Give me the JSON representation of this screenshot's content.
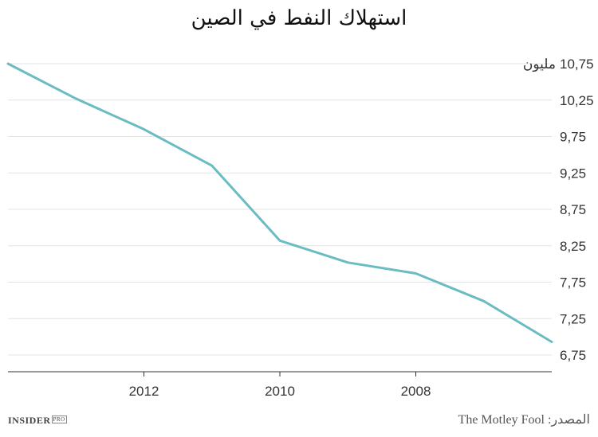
{
  "chart_data": {
    "type": "line",
    "title": "استهلاك النفط في الصين",
    "ylabel_unit": "مليون",
    "y_ticks": [
      "10,75",
      "10,25",
      "9,75",
      "9,25",
      "8,75",
      "8,25",
      "7,75",
      "7,25",
      "6,75"
    ],
    "y_tick_values": [
      10.75,
      10.25,
      9.75,
      9.25,
      8.75,
      8.25,
      7.75,
      7.25,
      6.75
    ],
    "x_ticks": [
      "2012",
      "2010",
      "2008"
    ],
    "x_tick_values": [
      2012,
      2010,
      2008
    ],
    "x_reversed": true,
    "xlim": [
      2006,
      2014
    ],
    "ylim": [
      6.5,
      10.85
    ],
    "grid": true,
    "series": [
      {
        "color": "#6bbcc2",
        "x": [
          2014,
          2013,
          2012,
          2011,
          2010,
          2009,
          2008,
          2007,
          2006
        ],
        "y": [
          10.75,
          10.27,
          9.85,
          9.35,
          8.32,
          8.02,
          7.87,
          7.49,
          6.93
        ]
      }
    ]
  },
  "footer": {
    "logo": "INSIDER",
    "logo_badge": "PRO",
    "source": "المصدر: The Motley Fool"
  }
}
